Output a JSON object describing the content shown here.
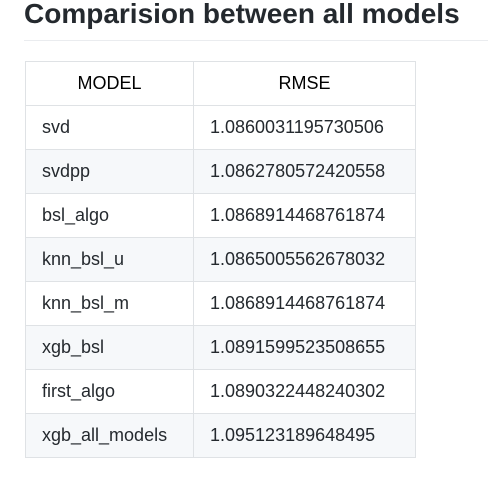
{
  "page": {
    "title": "Comparision between all models"
  },
  "table": {
    "headers": [
      "MODEL",
      "RMSE"
    ],
    "rows": [
      {
        "model": "svd",
        "rmse": "1.0860031195730506"
      },
      {
        "model": "svdpp",
        "rmse": "1.0862780572420558"
      },
      {
        "model": "bsl_algo",
        "rmse": "1.0868914468761874"
      },
      {
        "model": "knn_bsl_u",
        "rmse": "1.0865005562678032"
      },
      {
        "model": "knn_bsl_m",
        "rmse": "1.0868914468761874"
      },
      {
        "model": "xgb_bsl",
        "rmse": "1.0891599523508655"
      },
      {
        "model": "first_algo",
        "rmse": "1.0890322448240302"
      },
      {
        "model": "xgb_all_models",
        "rmse": "1.095123189648495"
      }
    ]
  },
  "colors": {
    "text": "#24292e",
    "border": "#dfe2e5",
    "stripe": "#f6f8fa",
    "rule": "#eaecef"
  }
}
